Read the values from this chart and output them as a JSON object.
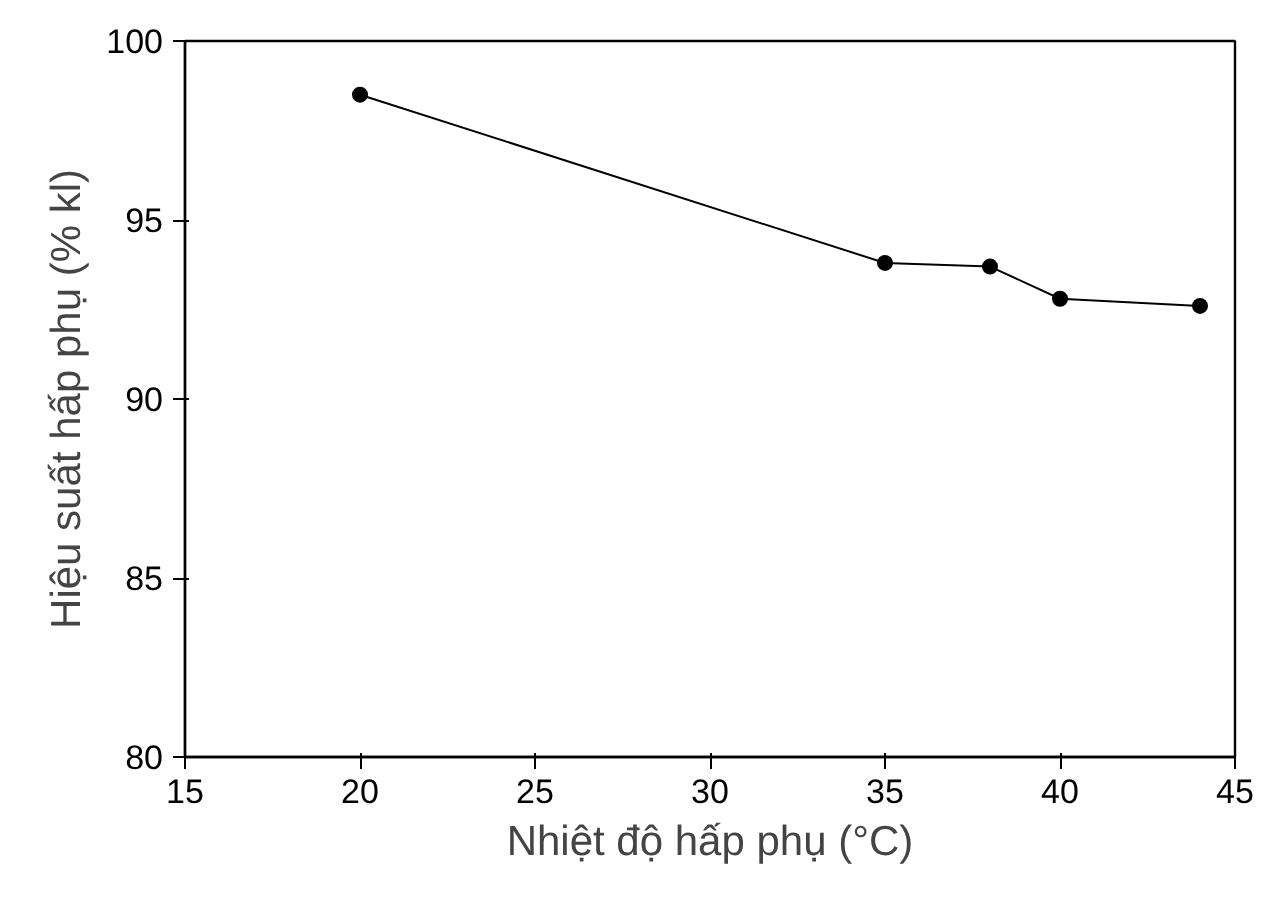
{
  "chart_data": {
    "type": "line",
    "xlabel": "Nhiệt độ hấp phụ (°C)",
    "ylabel": "Hiệu suất hấp phụ (% kl)",
    "x": [
      20,
      35,
      38,
      40,
      44
    ],
    "series": [
      {
        "color": "#000000",
        "values": [
          98.5,
          93.8,
          93.7,
          92.8,
          92.6
        ]
      }
    ],
    "xlim": [
      15,
      45
    ],
    "xticks": [
      15,
      20,
      25,
      30,
      35,
      40,
      45
    ],
    "ylim": [
      80,
      100
    ],
    "yticks": [
      80,
      85,
      90,
      95,
      100
    ],
    "grid": false,
    "marker": "circle",
    "line_style": "solid"
  }
}
